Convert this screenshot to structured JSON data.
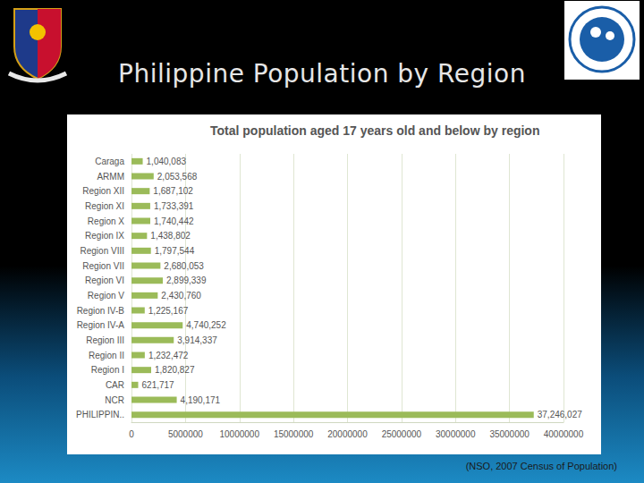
{
  "heading": "Philippine Population by Region",
  "source": "(NSO, 2007 Census of Population)",
  "chart_data": {
    "type": "bar",
    "orientation": "horizontal",
    "title": "Total population aged 17 years old and below by region",
    "categories": [
      "Caraga",
      "ARMM",
      "Region XII",
      "Region XI",
      "Region X",
      "Region IX",
      "Region VIII",
      "Region VII",
      "Region VI",
      "Region V",
      "Region IV-B",
      "Region IV-A",
      "Region III",
      "Region II",
      "Region I",
      "CAR",
      "NCR",
      "PHILIPPIN.."
    ],
    "values": [
      1040083,
      2053568,
      1687102,
      1733391,
      1740442,
      1438802,
      1797544,
      2680053,
      2899339,
      2430760,
      1225167,
      4740252,
      3914337,
      1232472,
      1820827,
      621717,
      4190171,
      37246027
    ],
    "value_labels": [
      "1,040,083",
      "2,053,568",
      "1,687,102",
      "1,733,391",
      "1,740,442",
      "1,438,802",
      "1,797,544",
      "2,680,053",
      "2,899,339",
      "2,430,760",
      "1,225,167",
      "4,740,252",
      "3,914,337",
      "1,232,472",
      "1,820,827",
      "621,717",
      "4,190,171",
      "37,246,027"
    ],
    "color": "#9bbb59",
    "xlim": [
      0,
      40000000
    ],
    "xticks": [
      0,
      5000000,
      10000000,
      15000000,
      20000000,
      25000000,
      30000000,
      35000000,
      40000000
    ],
    "grid": true,
    "data_labels": true
  }
}
